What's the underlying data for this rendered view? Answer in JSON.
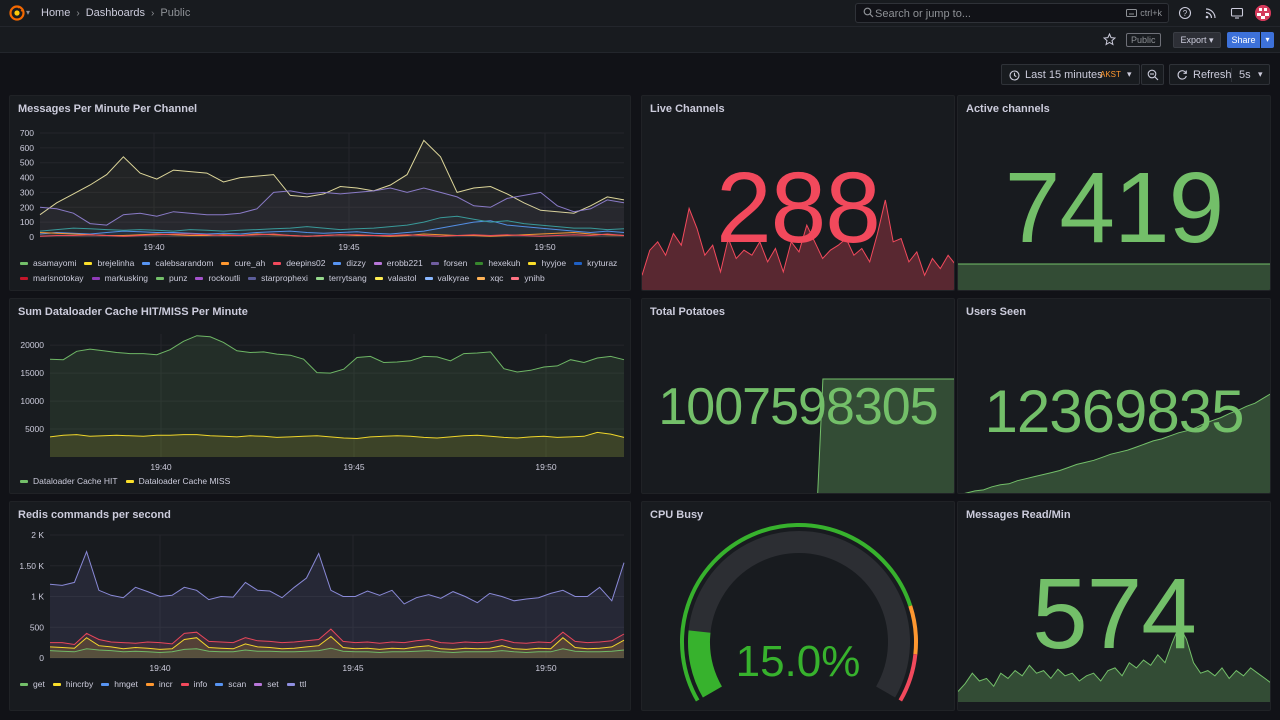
{
  "nav": {
    "breadcrumbs": [
      "Home",
      "Dashboards",
      "Public"
    ],
    "search": {
      "placeholder": "Search or jump to...",
      "shortcut": "ctrl+k"
    }
  },
  "toolbar": {
    "public_badge": "Public",
    "export_label": "Export",
    "share_label": "Share"
  },
  "time": {
    "range_label": "Last 15 minutes",
    "timezone": "AKST",
    "refresh_label": "Refresh",
    "refresh_interval": "5s"
  },
  "colors": {
    "green": "#73bf69",
    "red": "#f2495c",
    "yellow": "#fade2a",
    "orange": "#ff9830",
    "blue": "#5794f2",
    "purple": "#b877d9"
  },
  "panels": {
    "messages": {
      "title": "Messages Per Minute Per Channel",
      "legend": [
        {
          "name": "asamayomi",
          "color": "#73bf69"
        },
        {
          "name": "brejelinha",
          "color": "#fade2a"
        },
        {
          "name": "calebsarandom",
          "color": "#5794f2"
        },
        {
          "name": "cure_ah",
          "color": "#ff9830"
        },
        {
          "name": "deepins02",
          "color": "#f2495c"
        },
        {
          "name": "dizzy",
          "color": "#5794f2"
        },
        {
          "name": "erobb221",
          "color": "#b877d9"
        },
        {
          "name": "forsen",
          "color": "#705da0"
        },
        {
          "name": "hexekuh",
          "color": "#37872d"
        },
        {
          "name": "hyyjoe",
          "color": "#fade2a"
        },
        {
          "name": "kryturaz",
          "color": "#1f60c4"
        },
        {
          "name": "marisnotokay",
          "color": "#c4162a"
        },
        {
          "name": "markusking",
          "color": "#8f3bb8"
        },
        {
          "name": "punz",
          "color": "#73bf69"
        },
        {
          "name": "rockoutli",
          "color": "#a352cc"
        },
        {
          "name": "starprophexi",
          "color": "#5b5d99"
        },
        {
          "name": "terrytsang",
          "color": "#96d98d"
        },
        {
          "name": "valastol",
          "color": "#ffee52"
        },
        {
          "name": "valkyrae",
          "color": "#8ab8ff"
        },
        {
          "name": "xqc",
          "color": "#ffb357"
        },
        {
          "name": "ynihb",
          "color": "#ff7383"
        }
      ]
    },
    "live_channels": {
      "title": "Live Channels",
      "value": "288"
    },
    "active_channels": {
      "title": "Active channels",
      "value": "7419"
    },
    "dataloader": {
      "title": "Sum Dataloader Cache HIT/MISS Per Minute",
      "legend": [
        {
          "name": "Dataloader Cache HIT",
          "color": "#73bf69"
        },
        {
          "name": "Dataloader Cache MISS",
          "color": "#fade2a"
        }
      ]
    },
    "total_potatoes": {
      "title": "Total Potatoes",
      "value": "1007598305"
    },
    "users_seen": {
      "title": "Users Seen",
      "value": "12369835"
    },
    "redis": {
      "title": "Redis commands per second",
      "legend": [
        {
          "name": "get",
          "color": "#73bf69"
        },
        {
          "name": "hincrby",
          "color": "#fade2a"
        },
        {
          "name": "hmget",
          "color": "#5794f2"
        },
        {
          "name": "incr",
          "color": "#ff9830"
        },
        {
          "name": "info",
          "color": "#f2495c"
        },
        {
          "name": "scan",
          "color": "#5794f2"
        },
        {
          "name": "set",
          "color": "#b877d9"
        },
        {
          "name": "ttl",
          "color": "#8f8fe0"
        }
      ]
    },
    "cpu": {
      "title": "CPU Busy",
      "value": "15.0%",
      "percent": 15.0
    },
    "messages_read": {
      "title": "Messages Read/Min",
      "value": "574"
    }
  },
  "chart_data": [
    {
      "type": "line",
      "title": "Messages Per Minute Per Channel",
      "x_ticks": [
        "19:40",
        "19:45",
        "19:50"
      ],
      "ylim": [
        0,
        700
      ],
      "y_ticks": [
        0,
        100,
        200,
        300,
        400,
        500,
        600,
        700
      ],
      "series": [
        {
          "name": "starprophexi",
          "color": "#e8e0a0",
          "values": [
            150,
            230,
            290,
            350,
            420,
            540,
            430,
            390,
            450,
            440,
            430,
            370,
            400,
            410,
            420,
            280,
            270,
            290,
            340,
            330,
            310,
            350,
            420,
            650,
            540,
            300,
            330,
            340,
            290,
            230,
            180,
            170,
            160,
            210,
            270,
            250
          ]
        },
        {
          "name": "forsen",
          "color": "#8f7fd0",
          "values": [
            200,
            190,
            160,
            90,
            80,
            150,
            160,
            140,
            170,
            160,
            150,
            150,
            160,
            190,
            300,
            310,
            290,
            300,
            290,
            300,
            310,
            330,
            300,
            330,
            300,
            270,
            210,
            200,
            260,
            280,
            300,
            210,
            170,
            190,
            250,
            230
          ]
        },
        {
          "name": "dizzy",
          "color": "#5794f2",
          "values": [
            20,
            30,
            25,
            20,
            30,
            40,
            35,
            30,
            30,
            25,
            20,
            25,
            20,
            30,
            35,
            40,
            30,
            25,
            30,
            35,
            25,
            20,
            30,
            40,
            60,
            80,
            100,
            110,
            80,
            70,
            60,
            50,
            40,
            30,
            40,
            30
          ]
        },
        {
          "name": "hexekuh",
          "color": "#3a9f9f",
          "values": [
            40,
            50,
            60,
            55,
            50,
            45,
            50,
            45,
            40,
            50,
            45,
            40,
            45,
            50,
            55,
            60,
            70,
            60,
            50,
            55,
            60,
            70,
            80,
            100,
            130,
            140,
            120,
            100,
            110,
            90,
            80,
            70,
            60,
            60,
            50,
            55
          ]
        },
        {
          "name": "xqc",
          "color": "#ff9830",
          "values": [
            30,
            25,
            20,
            15,
            10,
            10,
            15,
            20,
            15,
            10,
            10,
            15,
            10,
            20,
            15,
            10,
            5,
            10,
            15,
            10,
            10,
            5,
            10,
            20,
            15,
            10,
            10,
            5,
            10,
            15,
            20,
            25,
            30,
            20,
            15,
            10
          ]
        },
        {
          "name": "valkyrae",
          "color": "#f2495c",
          "values": [
            5,
            10,
            10,
            15,
            10,
            5,
            10,
            15,
            20,
            20,
            15,
            10,
            10,
            15,
            20,
            10,
            5,
            10,
            15,
            15,
            10,
            10,
            15,
            10,
            5,
            10,
            15,
            10,
            15,
            10,
            5,
            10,
            15,
            10,
            20,
            10
          ]
        }
      ]
    },
    {
      "type": "area",
      "title": "Live Channels",
      "series": [
        {
          "name": "Live Channels",
          "values": [
            10,
            25,
            30,
            22,
            35,
            28,
            50,
            38,
            22,
            28,
            12,
            32,
            20,
            25,
            22,
            30,
            18,
            26,
            12,
            30,
            24,
            40,
            30,
            20,
            25,
            28,
            32,
            22,
            26,
            18,
            35,
            55,
            30,
            32,
            18,
            24,
            10,
            20,
            14,
            22,
            16
          ]
        }
      ]
    },
    {
      "type": "area",
      "title": "Active channels",
      "series": [
        {
          "name": "Active channels",
          "values": [
            30,
            30,
            30,
            30,
            30,
            30,
            30,
            30,
            30,
            30
          ]
        }
      ]
    },
    {
      "type": "line",
      "title": "Sum Dataloader Cache HIT/MISS Per Minute",
      "x_ticks": [
        "19:40",
        "19:45",
        "19:50"
      ],
      "ylim": [
        0,
        22000
      ],
      "y_ticks": [
        5000,
        10000,
        15000,
        20000
      ],
      "series": [
        {
          "name": "Dataloader Cache HIT",
          "color": "#73bf69",
          "values": [
            17500,
            17400,
            18900,
            19300,
            19000,
            18700,
            18500,
            18500,
            18300,
            19200,
            20700,
            21700,
            21500,
            20500,
            19000,
            18700,
            18800,
            18400,
            18200,
            17500,
            15100,
            15000,
            15700,
            17800,
            18000,
            16900,
            17000,
            17200,
            18000,
            17900,
            17200,
            18500,
            18600,
            18800,
            15800,
            15200,
            15500,
            16100,
            16300,
            17400,
            16900,
            17700,
            18000,
            17400
          ]
        },
        {
          "name": "Dataloader Cache MISS",
          "color": "#fade2a",
          "values": [
            3600,
            3900,
            4000,
            3700,
            3800,
            3900,
            3800,
            3700,
            3900,
            3900,
            4000,
            4000,
            3800,
            3700,
            3600,
            3800,
            3700,
            3500,
            3600,
            3700,
            3800,
            3600,
            3400,
            3300,
            3600,
            3700,
            3800,
            3700,
            3500,
            3400,
            3600,
            3800,
            3900,
            3700,
            3500,
            3400,
            3600,
            3700,
            3500,
            3600,
            3700,
            4400,
            4100,
            3500
          ]
        }
      ]
    },
    {
      "type": "area",
      "title": "Total Potatoes",
      "series": [
        {
          "name": "Total Potatoes",
          "values": [
            0,
            0,
            0,
            0,
            0,
            0,
            0,
            0,
            0,
            0,
            0,
            0,
            0,
            0,
            0,
            0,
            0,
            0,
            0,
            0,
            0,
            0,
            0,
            0,
            0,
            0,
            0,
            0,
            0,
            0,
            0,
            0,
            0,
            0,
            1,
            1,
            1,
            1,
            1,
            1,
            1,
            1,
            1,
            1,
            1,
            1,
            1,
            1,
            1,
            1,
            1,
            1,
            1,
            1,
            1,
            1,
            1,
            1,
            1,
            1
          ]
        }
      ]
    },
    {
      "type": "area",
      "title": "Users Seen",
      "series": [
        {
          "name": "Users Seen",
          "values": [
            0,
            2,
            4,
            5,
            8,
            10,
            11,
            14,
            16,
            18,
            20,
            22,
            24,
            27,
            30,
            32,
            34,
            37,
            40,
            42,
            44,
            47,
            50,
            53,
            55,
            58,
            61,
            63,
            66,
            70,
            73,
            76,
            80,
            83,
            87,
            90,
            95,
            100
          ]
        }
      ]
    },
    {
      "type": "line",
      "title": "Redis commands per second",
      "x_ticks": [
        "19:40",
        "19:45",
        "19:50"
      ],
      "ylim": [
        0,
        2000
      ],
      "y_ticks": [
        "0",
        "500",
        "1 K",
        "1.50 K",
        "2 K"
      ],
      "series": [
        {
          "name": "ttl",
          "color": "#8f8fe0",
          "values": [
            1200,
            1180,
            1230,
            1730,
            1100,
            1020,
            980,
            1150,
            1080,
            1000,
            1020,
            1150,
            1100,
            950,
            1000,
            990,
            1230,
            1100,
            1090,
            980,
            1150,
            1300,
            1700,
            1100,
            1000,
            1000,
            1090,
            1020,
            1100,
            880,
            980,
            1030,
            970,
            1080,
            1000,
            900,
            1050,
            1000,
            930,
            960,
            980,
            1050,
            1100,
            1000,
            1000,
            1150,
            930,
            1550
          ]
        },
        {
          "name": "info",
          "color": "#f2495c",
          "values": [
            250,
            250,
            220,
            400,
            300,
            260,
            250,
            240,
            260,
            250,
            230,
            400,
            420,
            270,
            260,
            250,
            330,
            280,
            270,
            250,
            260,
            280,
            300,
            470,
            270,
            250,
            260,
            240,
            260,
            250,
            280,
            300,
            250,
            240,
            260,
            250,
            260,
            300,
            250,
            240,
            260,
            250,
            420,
            270,
            250,
            260,
            280,
            390
          ]
        },
        {
          "name": "get",
          "color": "#fade2a",
          "values": [
            180,
            170,
            160,
            330,
            200,
            180,
            150,
            170,
            160,
            140,
            150,
            300,
            330,
            170,
            160,
            150,
            230,
            180,
            170,
            150,
            160,
            180,
            200,
            350,
            170,
            150,
            160,
            140,
            160,
            150,
            180,
            200,
            150,
            140,
            160,
            150,
            160,
            200,
            150,
            140,
            160,
            150,
            330,
            170,
            150,
            160,
            180,
            290
          ]
        },
        {
          "name": "set",
          "color": "#73bf69",
          "values": [
            120,
            110,
            100,
            150,
            130,
            120,
            100,
            110,
            100,
            90,
            100,
            140,
            150,
            110,
            100,
            100,
            130,
            110,
            110,
            100,
            100,
            110,
            120,
            160,
            110,
            100,
            100,
            90,
            100,
            100,
            110,
            120,
            100,
            90,
            100,
            100,
            100,
            120,
            100,
            90,
            100,
            100,
            150,
            110,
            100,
            100,
            110,
            130
          ]
        }
      ]
    },
    {
      "type": "gauge",
      "title": "CPU Busy",
      "value": 15.0,
      "unit": "%",
      "ylim": [
        0,
        100
      ]
    },
    {
      "type": "area",
      "title": "Messages Read/Min",
      "series": [
        {
          "name": "Messages Read/Min",
          "values": [
            8,
            14,
            22,
            16,
            18,
            12,
            22,
            18,
            24,
            20,
            28,
            22,
            24,
            18,
            25,
            20,
            22,
            16,
            20,
            22,
            16,
            24,
            26,
            20,
            30,
            26,
            32,
            28,
            36,
            30,
            45,
            58,
            48,
            30,
            22,
            24,
            20,
            26,
            18,
            24,
            20,
            26,
            22,
            18,
            14
          ]
        }
      ]
    }
  ]
}
